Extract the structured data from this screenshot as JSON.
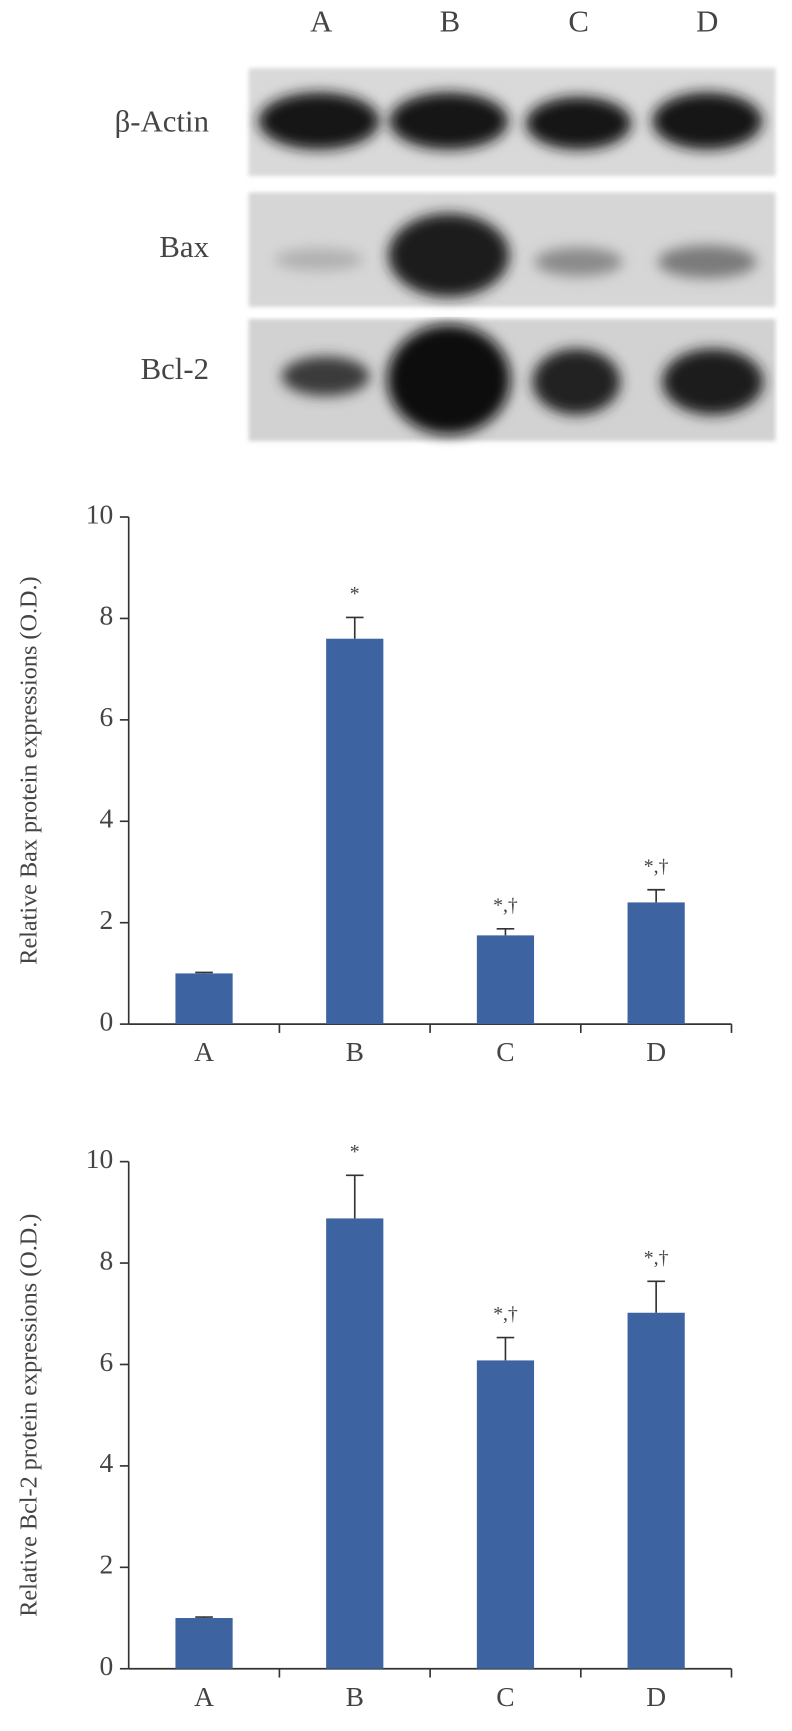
{
  "blot": {
    "lanes": [
      "A",
      "B",
      "C",
      "D"
    ],
    "rows": [
      "β-Actin",
      "Bax",
      "Bcl-2"
    ]
  },
  "chart_data": [
    {
      "type": "bar",
      "y_label": "Relative Bax protein expressions (O.D.)",
      "categories": [
        "A",
        "B",
        "C",
        "D"
      ],
      "values": [
        1.0,
        7.6,
        1.75,
        2.4
      ],
      "errors": [
        0.02,
        0.42,
        0.13,
        0.25
      ],
      "annotations": [
        null,
        "*",
        "*,†",
        "*,†"
      ],
      "color": "#3d63a0",
      "ylim": [
        0,
        10
      ],
      "yticks": [
        0,
        2,
        4,
        6,
        8,
        10
      ]
    },
    {
      "type": "bar",
      "y_label": "Relative Bcl-2 protein expressions (O.D.)",
      "categories": [
        "A",
        "B",
        "C",
        "D"
      ],
      "values": [
        1.0,
        8.88,
        6.08,
        7.02
      ],
      "errors": [
        0.02,
        0.85,
        0.45,
        0.62
      ],
      "annotations": [
        null,
        "*",
        "*,†",
        "*,†"
      ],
      "color": "#3d63a0",
      "ylim": [
        0,
        10
      ],
      "yticks": [
        0,
        2,
        4,
        6,
        8,
        10
      ]
    }
  ]
}
